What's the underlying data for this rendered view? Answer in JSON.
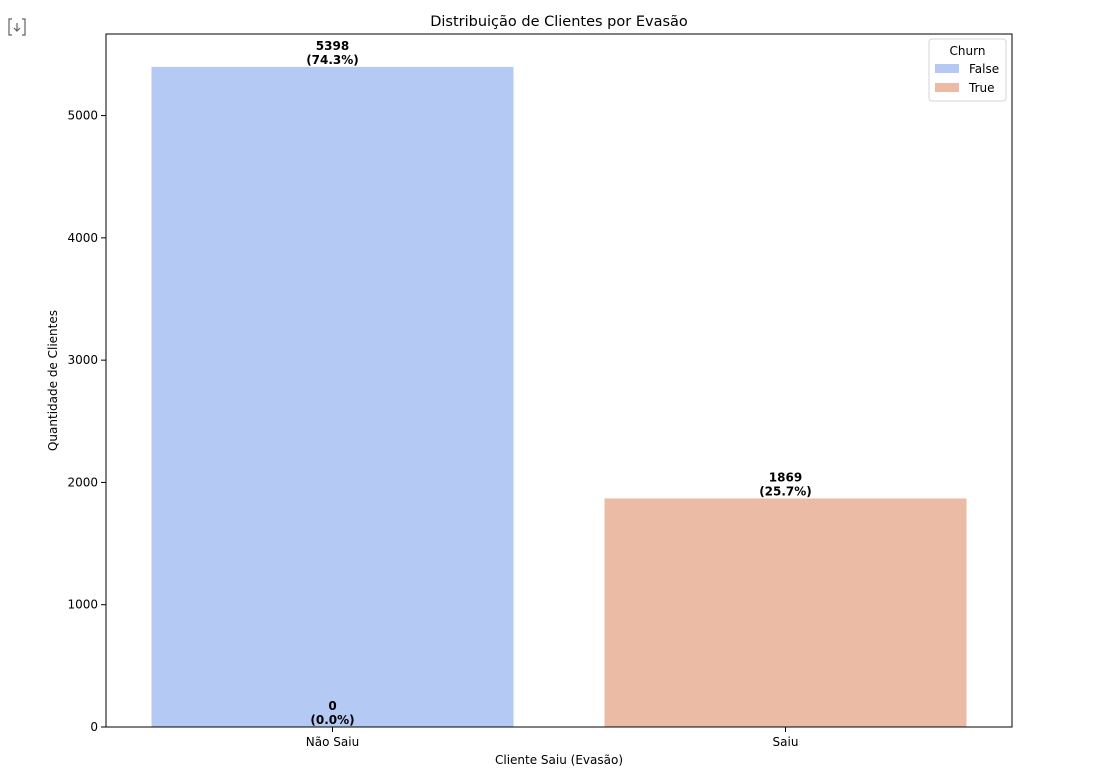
{
  "output_icon": "output-toggle-icon",
  "chart_data": {
    "type": "bar",
    "title": "Distribuição de Clientes por Evasão",
    "xlabel": "Cliente Saiu (Evasão)",
    "ylabel": "Quantidade de Clientes",
    "categories": [
      "Não Saiu",
      "Saiu"
    ],
    "ylim": [
      0,
      5667
    ],
    "yticks": [
      0,
      1000,
      2000,
      3000,
      4000,
      5000
    ],
    "grid": false,
    "legend": {
      "title": "Churn",
      "placement": "top-right"
    },
    "series": [
      {
        "name": "False",
        "color": "#b4c9f3",
        "values": [
          5398,
          0
        ],
        "labels": [
          {
            "count": "5398",
            "pct": "(74.3%)"
          },
          null
        ]
      },
      {
        "name": "True",
        "color": "#ebbba6",
        "values": [
          0,
          1869
        ],
        "labels": [
          {
            "count": "0",
            "pct": "(0.0%)"
          },
          {
            "count": "1869",
            "pct": "(25.7%)"
          }
        ]
      }
    ]
  }
}
